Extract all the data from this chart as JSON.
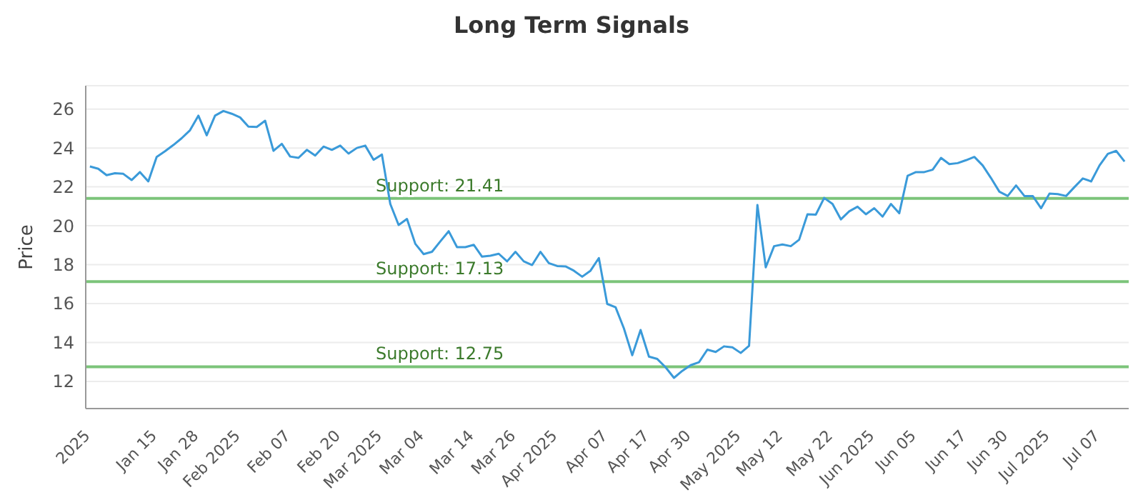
{
  "chart_data": {
    "type": "line",
    "title": "Long Term Signals",
    "ylabel": "Price",
    "categories": [
      "2025",
      null,
      null,
      null,
      null,
      null,
      null,
      null,
      "Jan 15",
      null,
      null,
      null,
      null,
      "Jan 28",
      null,
      null,
      null,
      null,
      "Feb 2025",
      null,
      null,
      null,
      null,
      null,
      "Feb 07",
      null,
      null,
      null,
      null,
      null,
      "Feb 20",
      null,
      null,
      null,
      null,
      "Mar 2025",
      null,
      null,
      null,
      null,
      "Mar 04",
      null,
      null,
      null,
      null,
      null,
      "Mar 14",
      null,
      null,
      null,
      null,
      "Mar 26",
      null,
      null,
      null,
      null,
      "Apr 2025",
      null,
      null,
      null,
      null,
      null,
      "Apr 07",
      null,
      null,
      null,
      null,
      "Apr 17",
      null,
      null,
      null,
      null,
      "Apr 30",
      null,
      null,
      null,
      null,
      null,
      "May 2025",
      null,
      null,
      null,
      null,
      "May 12",
      null,
      null,
      null,
      null,
      null,
      "May 22",
      null,
      null,
      null,
      null,
      "Jun 2025",
      null,
      null,
      null,
      null,
      "Jun 05",
      null,
      null,
      null,
      null,
      null,
      "Jun 17",
      null,
      null,
      null,
      null,
      "Jun 30",
      null,
      null,
      null,
      null,
      "Jul 2025",
      null,
      null,
      null,
      null,
      null,
      "Jul 07",
      null,
      null,
      null
    ],
    "series": [
      {
        "color": "#3a9ad9",
        "values": [
          23.05,
          22.93,
          22.6,
          22.7,
          22.67,
          22.35,
          22.76,
          22.28,
          23.54,
          23.83,
          24.15,
          24.5,
          24.91,
          25.66,
          24.65,
          25.66,
          25.9,
          25.76,
          25.57,
          25.1,
          25.08,
          25.4,
          23.85,
          24.21,
          23.56,
          23.49,
          23.9,
          23.61,
          24.07,
          23.9,
          24.12,
          23.71,
          24.0,
          24.12,
          23.39,
          23.66,
          21.12,
          20.04,
          20.35,
          19.07,
          18.54,
          18.66,
          19.2,
          19.72,
          18.9,
          18.9,
          19.02,
          18.41,
          18.46,
          18.56,
          18.17,
          18.66,
          18.17,
          17.98,
          18.66,
          18.08,
          17.93,
          17.91,
          17.69,
          17.38,
          17.69,
          18.34,
          15.98,
          15.81,
          14.72,
          13.34,
          14.64,
          13.27,
          13.15,
          12.72,
          12.18,
          12.54,
          12.83,
          12.98,
          13.63,
          13.51,
          13.8,
          13.75,
          13.46,
          13.83,
          21.07,
          17.86,
          18.95,
          19.04,
          18.95,
          19.28,
          20.59,
          20.57,
          21.43,
          21.12,
          20.33,
          20.74,
          20.98,
          20.59,
          20.9,
          20.47,
          21.12,
          20.64,
          22.57,
          22.76,
          22.76,
          22.88,
          23.49,
          23.17,
          23.22,
          23.37,
          23.54,
          23.1,
          22.45,
          21.75,
          21.53,
          22.07,
          21.53,
          21.53,
          20.9,
          21.65,
          21.63,
          21.53,
          21.99,
          22.43,
          22.28,
          23.1,
          23.7,
          23.85,
          23.3
        ]
      }
    ],
    "ylim": [
      10.6,
      27.2
    ],
    "yticks": [
      12,
      14,
      16,
      18,
      20,
      22,
      24,
      26
    ],
    "grid": "y",
    "legend": false,
    "marker": "none",
    "line_style": "solid",
    "ref_lines": [
      {
        "axis": "y",
        "value": 21.41,
        "label": "Support: 21.41",
        "color": "#7cc47a"
      },
      {
        "axis": "y",
        "value": 17.13,
        "label": "Support: 17.13",
        "color": "#7cc47a"
      },
      {
        "axis": "y",
        "value": 12.75,
        "label": "Support: 12.75",
        "color": "#7cc47a"
      }
    ]
  }
}
